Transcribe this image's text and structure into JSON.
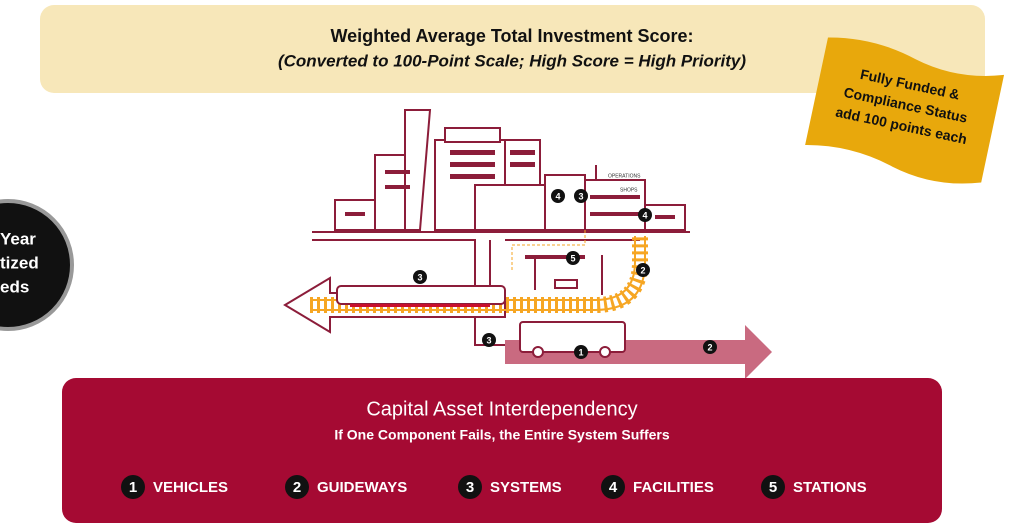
{
  "header": {
    "title": "Weighted Average Total Investment Score:",
    "subtitle": "(Converted to 100-Point Scale; High Score = High Priority)"
  },
  "note": {
    "lines": [
      "Fully Funded &",
      "Compliance Status",
      "add 100 points each"
    ]
  },
  "side_circle": {
    "lines": [
      "Year",
      "tized",
      "eds"
    ]
  },
  "illustration": {
    "labels": {
      "operations": "OPERATIONS",
      "shops": "SHOPS"
    },
    "badges": [
      4,
      3,
      4,
      5,
      2,
      3,
      3,
      1,
      2
    ]
  },
  "panel": {
    "title": "Capital Asset Interdependency",
    "subtitle": "If One Component Fails, the Entire System Suffers",
    "legend": [
      {
        "number": 1,
        "label": "VEHICLES"
      },
      {
        "number": 2,
        "label": "GUIDEWAYS"
      },
      {
        "number": 3,
        "label": "SYSTEMS"
      },
      {
        "number": 4,
        "label": "FACILITIES"
      },
      {
        "number": 5,
        "label": "STATIONS"
      }
    ]
  }
}
